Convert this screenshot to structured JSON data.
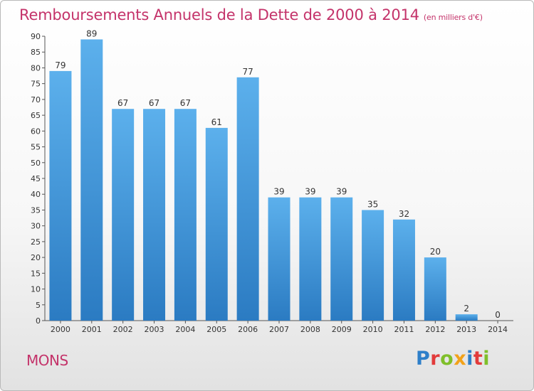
{
  "header": {
    "title": "Remboursements Annuels de la Dette de 2000 à 2014",
    "subtitle": "(en milliers d'€)"
  },
  "commune": "MONS",
  "logo": {
    "text": "Proxiti",
    "letter_colors": [
      "#2e7fc9",
      "#e23b3b",
      "#7fbf2a",
      "#f2a21a",
      "#2e7fc9",
      "#e23b3b",
      "#7fbf2a"
    ]
  },
  "chart_data": {
    "type": "bar",
    "categories": [
      "2000",
      "2001",
      "2002",
      "2003",
      "2004",
      "2005",
      "2006",
      "2007",
      "2008",
      "2009",
      "2010",
      "2011",
      "2012",
      "2013",
      "2014"
    ],
    "values": [
      79,
      89,
      67,
      67,
      67,
      61,
      77,
      39,
      39,
      39,
      35,
      32,
      20,
      2,
      0
    ],
    "title": "Remboursements Annuels de la Dette de 2000 à 2014",
    "ylim": [
      0,
      90
    ],
    "ytick_step": 5,
    "grid": false,
    "legend": "none",
    "colors": {
      "bar_top": "#5cb0ec",
      "bar_bottom": "#2b7bc2",
      "axis": "#555555",
      "text": "#333333"
    }
  }
}
